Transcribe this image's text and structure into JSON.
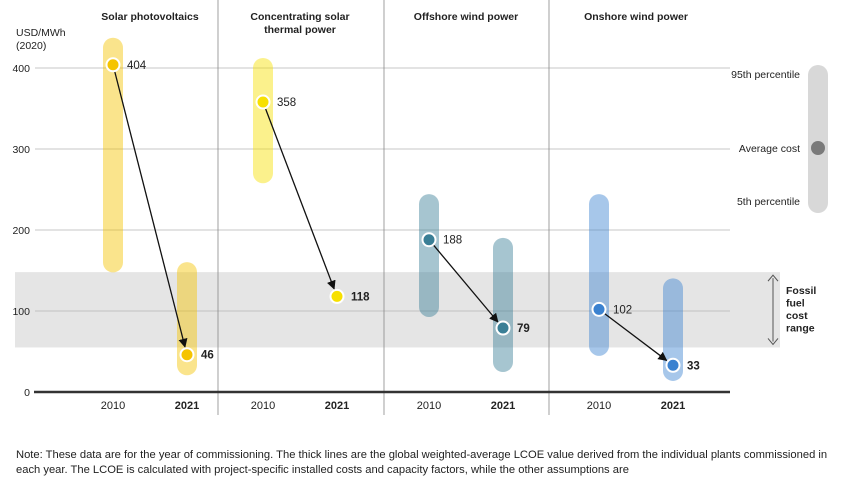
{
  "chart_data": {
    "type": "range-bar with average markers",
    "units": [
      "USD/MWh",
      "(2020)"
    ],
    "ylim": [
      0,
      420
    ],
    "yticks": [
      0,
      100,
      200,
      300,
      400
    ],
    "years": [
      "2010",
      "2021"
    ],
    "technologies": [
      {
        "name": "Solar photovoltaics",
        "color": "#f5c400",
        "y2010": {
          "p5": 160,
          "p95": 425,
          "avg": 404
        },
        "y2021": {
          "p5": 33,
          "p95": 148,
          "avg": 46
        }
      },
      {
        "name": "Concentrating solar thermal power",
        "name_lines": [
          "Concentrating solar",
          "thermal power"
        ],
        "color": "#f7e000",
        "y2010": {
          "p5": 270,
          "p95": 400,
          "avg": 358
        },
        "y2021": {
          "p5": 118,
          "p95": 118,
          "avg": 118
        }
      },
      {
        "name": "Offshore wind power",
        "color": "#3a7f96",
        "y2010": {
          "p5": 105,
          "p95": 232,
          "avg": 188
        },
        "y2021": {
          "p5": 37,
          "p95": 178,
          "avg": 79
        }
      },
      {
        "name": "Onshore wind power",
        "color": "#3b82d0",
        "y2010": {
          "p5": 57,
          "p95": 232,
          "avg": 102
        },
        "y2021": {
          "p5": 26,
          "p95": 128,
          "avg": 33
        }
      }
    ],
    "fossil_range": [
      55,
      148
    ],
    "fossil_label": [
      "Fossil",
      "fuel",
      "cost",
      "range"
    ],
    "legend": {
      "p95": "95th percentile",
      "avg": "Average cost",
      "p5": "5th percentile"
    }
  },
  "note": "Note: These data are for the year of commissioning. The thick lines are the global weighted-average LCOE value derived from the individual plants commissioned in each year. The LCOE is calculated with project-specific installed costs and capacity factors, while the other assumptions are"
}
